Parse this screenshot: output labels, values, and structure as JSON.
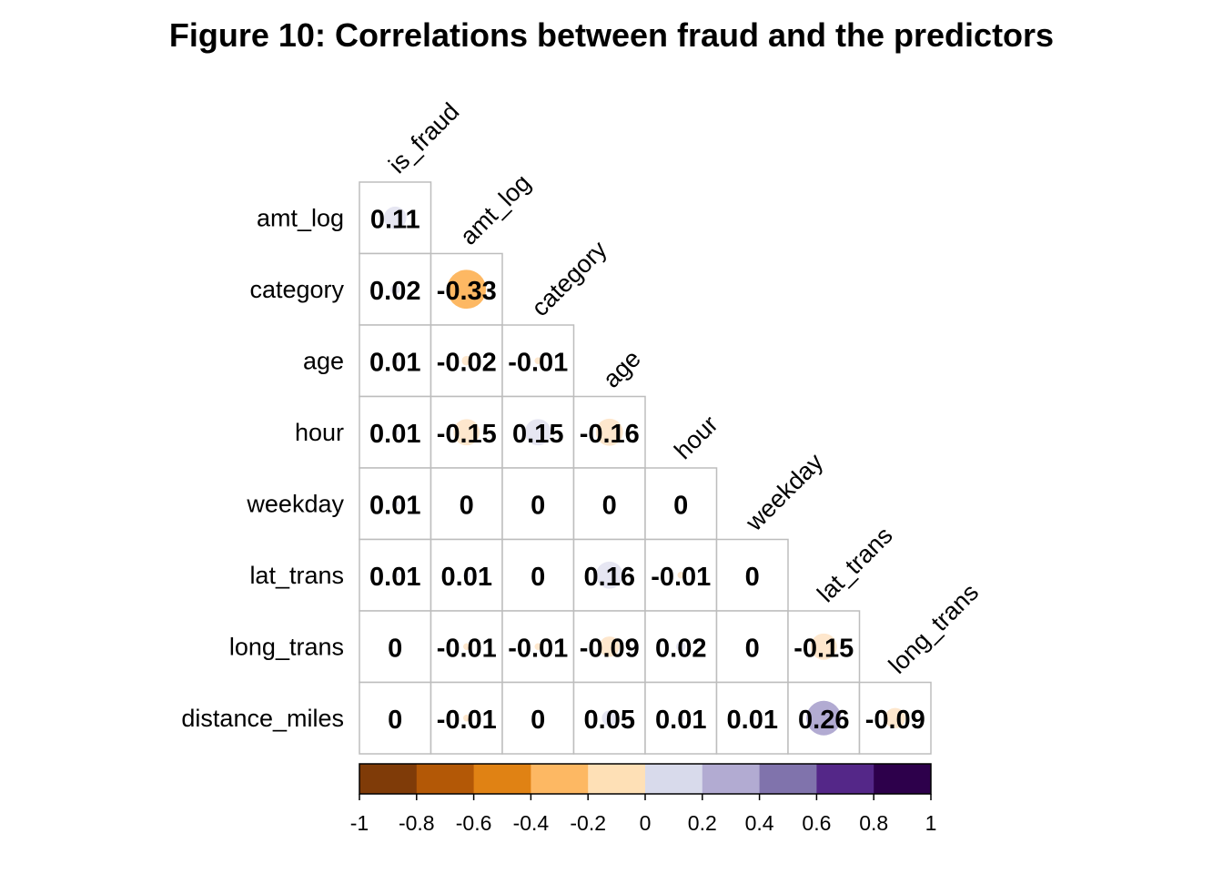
{
  "chart_data": {
    "type": "heatmap",
    "title": "Figure 10: Correlations between fraud and the predictors",
    "variables": [
      "is_fraud",
      "amt_log",
      "category",
      "age",
      "hour",
      "weekday",
      "lat_trans",
      "long_trans",
      "distance_miles"
    ],
    "row_labels": [
      "amt_log",
      "category",
      "age",
      "hour",
      "weekday",
      "lat_trans",
      "long_trans",
      "distance_miles"
    ],
    "col_labels": [
      "is_fraud",
      "amt_log",
      "category",
      "age",
      "hour",
      "weekday",
      "lat_trans",
      "long_trans"
    ],
    "values": [
      [
        0.11
      ],
      [
        0.02,
        -0.33
      ],
      [
        0.01,
        -0.02,
        -0.01
      ],
      [
        0.01,
        -0.15,
        0.15,
        -0.16
      ],
      [
        0.01,
        0,
        0,
        0,
        0
      ],
      [
        0.01,
        0.01,
        0,
        0.16,
        -0.01,
        0
      ],
      [
        0,
        -0.01,
        -0.01,
        -0.09,
        0.02,
        0,
        -0.15
      ],
      [
        0,
        -0.01,
        0,
        0.05,
        0.01,
        0.01,
        0.26,
        -0.09
      ]
    ],
    "labels": [
      [
        "0.11"
      ],
      [
        "0.02",
        "-0.33"
      ],
      [
        "0.01",
        "-0.02",
        "-0.01"
      ],
      [
        "0.01",
        "-0.15",
        "0.15",
        "-0.16"
      ],
      [
        "0.01",
        "0",
        "0",
        "0",
        "0"
      ],
      [
        "0.01",
        "0.01",
        "0",
        "0.16",
        "-0.01",
        "0"
      ],
      [
        "0",
        "-0.01",
        "-0.01",
        "-0.09",
        "0.02",
        "0",
        "-0.15"
      ],
      [
        "0",
        "-0.01",
        "0",
        "0.05",
        "0.01",
        "0.01",
        "0.26",
        "-0.09"
      ]
    ],
    "color_scale": {
      "range": [
        -1,
        1
      ],
      "colors": [
        "#7f3b08",
        "#b35806",
        "#e08214",
        "#fdb863",
        "#fee0b6",
        "#d8daeb",
        "#b2abd2",
        "#8073ac",
        "#542788",
        "#2d004b"
      ],
      "bin_colors": [
        "#7f3b08",
        "#b35806",
        "#e08214",
        "#fdb863",
        "#fee7cd",
        "#e6e6f2",
        "#b2abd2",
        "#8073ac",
        "#542788",
        "#2d004b"
      ],
      "tick_labels": [
        "-1",
        "-0.8",
        "-0.6",
        "-0.4",
        "-0.2",
        "0",
        "0.2",
        "0.4",
        "0.6",
        "0.8",
        "1"
      ]
    },
    "legend_position": "bottom"
  }
}
